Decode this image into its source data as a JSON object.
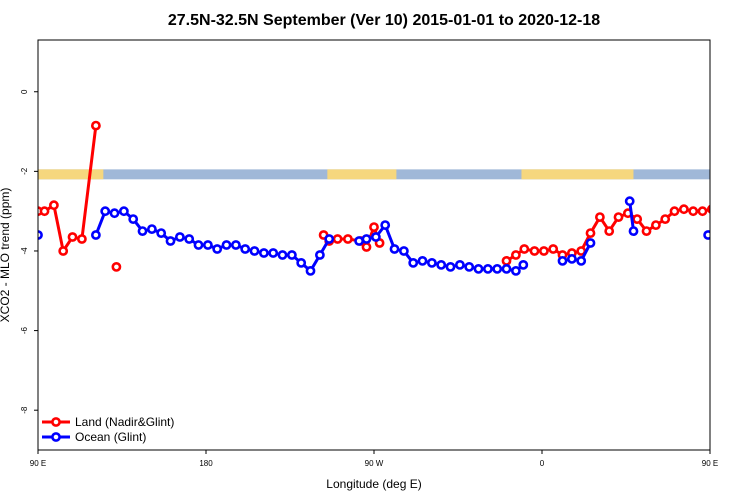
{
  "chart_data": {
    "type": "line",
    "title": "27.5N-32.5N September (Ver 10)   2015-01-01 to 2020-12-18",
    "xlabel": "Longitude (deg E)",
    "ylabel": "XCO2 - MLO trend (ppm)",
    "xlim": [
      90,
      450
    ],
    "ylim": [
      -9,
      1.3
    ],
    "x_ticks": [
      {
        "value": 90,
        "label": "90 E"
      },
      {
        "value": 180,
        "label": "180"
      },
      {
        "value": 270,
        "label": "90 W"
      },
      {
        "value": 360,
        "label": "0"
      },
      {
        "value": 450,
        "label": "90 E"
      },
      {
        "value": 540,
        "label": "180"
      }
    ],
    "y_ticks": [
      {
        "value": 0,
        "label": "0"
      },
      {
        "value": -2,
        "label": "-2"
      },
      {
        "value": -4,
        "label": "-4"
      },
      {
        "value": -6,
        "label": "-6"
      },
      {
        "value": -8,
        "label": "-8"
      }
    ],
    "grid": false,
    "legend_position": "bottom-left",
    "series": [
      {
        "name": "Land (Nadir&Glint)",
        "color": "#ff0000",
        "points": [
          [
            [
              90,
              -3.0
            ],
            [
              93.5,
              -3.0
            ],
            [
              98.5,
              -2.85
            ],
            [
              103.5,
              -4.0
            ],
            [
              108.5,
              -3.65
            ],
            [
              113.5,
              -3.7
            ],
            [
              121,
              -0.85
            ]
          ],
          [
            [
              132,
              -4.4
            ]
          ],
          [
            [
              243,
              -3.6
            ],
            [
              246,
              -3.75
            ],
            [
              250.5,
              -3.7
            ],
            [
              256,
              -3.7
            ],
            [
              263,
              -3.75
            ],
            [
              266,
              -3.9
            ],
            [
              270,
              -3.4
            ],
            [
              273,
              -3.8
            ]
          ],
          [
            [
              341,
              -4.25
            ],
            [
              346,
              -4.1
            ],
            [
              350.5,
              -3.95
            ],
            [
              356,
              -4.0
            ],
            [
              361,
              -4.0
            ],
            [
              366,
              -3.95
            ],
            [
              371,
              -4.1
            ],
            [
              376,
              -4.05
            ],
            [
              381,
              -4.0
            ],
            [
              386,
              -3.55
            ],
            [
              391,
              -3.15
            ],
            [
              396,
              -3.5
            ],
            [
              401,
              -3.15
            ],
            [
              406,
              -3.05
            ],
            [
              411,
              -3.2
            ],
            [
              416,
              -3.5
            ],
            [
              421,
              -3.35
            ],
            [
              426,
              -3.2
            ],
            [
              431,
              -3.0
            ],
            [
              436,
              -2.95
            ],
            [
              441,
              -3.0
            ],
            [
              446,
              -3.0
            ],
            [
              451,
              -2.95
            ],
            [
              456,
              -2.8
            ],
            [
              461,
              -4.0
            ],
            [
              466,
              -3.65
            ],
            [
              471,
              -3.7
            ],
            [
              476,
              -0.85
            ]
          ],
          [
            [
              487,
              -4.4
            ]
          ]
        ]
      },
      {
        "name": "Ocean (Glint)",
        "color": "#0000ff",
        "points": [
          [
            [
              90,
              -3.6
            ]
          ],
          [
            [
              121,
              -3.6
            ],
            [
              126,
              -3.0
            ],
            [
              131,
              -3.05
            ],
            [
              136,
              -3.0
            ],
            [
              141,
              -3.2
            ],
            [
              146,
              -3.5
            ],
            [
              151,
              -3.45
            ],
            [
              156,
              -3.55
            ],
            [
              161,
              -3.75
            ],
            [
              166,
              -3.65
            ],
            [
              171,
              -3.7
            ],
            [
              176,
              -3.85
            ],
            [
              181,
              -3.85
            ],
            [
              186,
              -3.95
            ],
            [
              191,
              -3.85
            ],
            [
              196,
              -3.85
            ],
            [
              201,
              -3.95
            ],
            [
              206,
              -4.0
            ],
            [
              211,
              -4.05
            ],
            [
              216,
              -4.05
            ],
            [
              221,
              -4.1
            ],
            [
              226,
              -4.1
            ],
            [
              231,
              -4.3
            ],
            [
              236,
              -4.5
            ],
            [
              241,
              -4.1
            ],
            [
              246,
              -3.7
            ]
          ],
          [
            [
              262,
              -3.75
            ],
            [
              266,
              -3.7
            ],
            [
              271,
              -3.65
            ],
            [
              276,
              -3.35
            ],
            [
              281,
              -3.95
            ],
            [
              286,
              -4.0
            ],
            [
              291,
              -4.3
            ],
            [
              296,
              -4.25
            ],
            [
              301,
              -4.3
            ],
            [
              306,
              -4.35
            ],
            [
              311,
              -4.4
            ],
            [
              316,
              -4.35
            ],
            [
              321,
              -4.4
            ],
            [
              326,
              -4.45
            ],
            [
              331,
              -4.45
            ],
            [
              336,
              -4.45
            ],
            [
              341,
              -4.45
            ],
            [
              346,
              -4.5
            ],
            [
              350,
              -4.35
            ]
          ],
          [
            [
              371,
              -4.25
            ],
            [
              376,
              -4.2
            ],
            [
              381,
              -4.25
            ],
            [
              386,
              -3.8
            ]
          ],
          [
            [
              407,
              -2.75
            ],
            [
              409,
              -3.5
            ]
          ],
          [
            [
              449,
              -3.6
            ]
          ],
          [
            [
              480,
              -3.6
            ],
            [
              485,
              -3.0
            ],
            [
              490,
              -3.05
            ],
            [
              495,
              -3.0
            ],
            [
              500,
              -3.2
            ],
            [
              505,
              -3.5
            ],
            [
              510,
              -3.45
            ],
            [
              515,
              -3.55
            ],
            [
              520,
              -3.75
            ],
            [
              525,
              -3.65
            ],
            [
              530,
              -3.7
            ],
            [
              535,
              -3.85
            ]
          ]
        ]
      }
    ],
    "map_strip": {
      "y_top": -1.95,
      "y_bottom": -2.2,
      "ocean_color": "#a0b8d8",
      "land_color": "#f6d77e",
      "land_ranges": [
        [
          90,
          125
        ],
        [
          245,
          282
        ],
        [
          349,
          409
        ],
        [
          450,
          485
        ]
      ]
    }
  }
}
